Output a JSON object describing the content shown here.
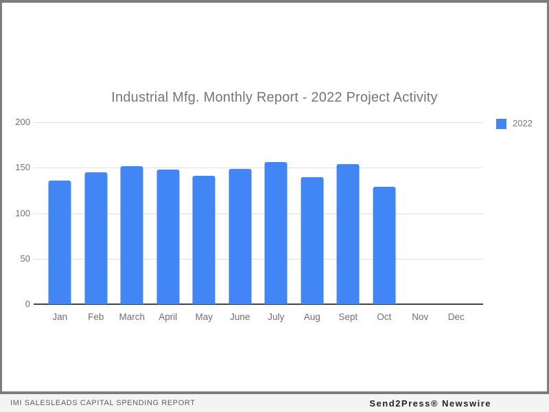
{
  "page": {
    "title": "Industrial Mfg. Monthly Report - 2022 Project Activity"
  },
  "chart_data": {
    "type": "bar",
    "title": "Industrial Mfg. Monthly Report - 2022 Project Activity",
    "categories": [
      "Jan",
      "Feb",
      "March",
      "April",
      "May",
      "June",
      "July",
      "Aug",
      "Sept",
      "Oct",
      "Nov",
      "Dec"
    ],
    "series": [
      {
        "name": "2022",
        "color": "#4285f4",
        "values": [
          136,
          145,
          152,
          148,
          141,
          149,
          156,
          140,
          154,
          129,
          0,
          0
        ]
      }
    ],
    "xlabel": "",
    "ylabel": "",
    "ylim": [
      0,
      200
    ],
    "yticks": [
      0,
      50,
      100,
      150,
      200
    ],
    "grid": true,
    "legend_position": "top-right"
  },
  "legend": {
    "items": [
      {
        "label": "2022",
        "color": "#4285f4",
        "swatch_icon": "square-swatch-icon"
      }
    ]
  },
  "footer": {
    "left_text": "IMI SALESLEADS CAPITAL SPENDING REPORT",
    "right_text": "Send2Press® Newswire"
  },
  "colors": {
    "bar": "#4285f4",
    "title_text": "#757575",
    "axis_text": "#6e6e6e",
    "gridline": "#e0e0e0",
    "axis_line": "#424242",
    "frame_border": "#7d7d7d",
    "footer_bg": "#f4f4f4",
    "footer_left_text": "#5f5f5f",
    "footer_right_text": "#222222"
  }
}
